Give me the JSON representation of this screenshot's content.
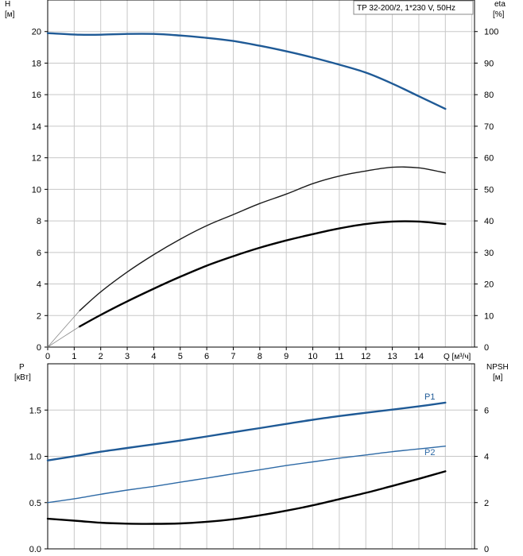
{
  "chart_data": [
    {
      "type": "line",
      "title": "TP 32-200/2, 1*230 V, 50Hz",
      "x_label": "Q [м³/ч]",
      "x_ticks": [
        0,
        1,
        2,
        3,
        4,
        5,
        6,
        7,
        8,
        9,
        10,
        11,
        12,
        13,
        14
      ],
      "xlim": [
        0,
        16.1
      ],
      "y_left": {
        "label": [
          "H",
          "[м]"
        ],
        "ticks": [
          0,
          2,
          4,
          6,
          8,
          10,
          12,
          14,
          16,
          18,
          20
        ],
        "lim": [
          0,
          22
        ]
      },
      "y_right": {
        "label": [
          "eta",
          "[%]"
        ],
        "ticks": [
          0,
          10,
          20,
          30,
          40,
          50,
          60,
          70,
          80,
          90,
          100
        ],
        "lim": [
          0,
          110
        ]
      },
      "series": [
        {
          "key": "H",
          "axis": "left",
          "color": "#1f5a96",
          "style": "thick",
          "points": [
            [
              0,
              19.9
            ],
            [
              1.2,
              19.8
            ],
            [
              2,
              19.8
            ],
            [
              3,
              19.85
            ],
            [
              4,
              19.85
            ],
            [
              5,
              19.75
            ],
            [
              6,
              19.6
            ],
            [
              7,
              19.4
            ],
            [
              8,
              19.1
            ],
            [
              9,
              18.75
            ],
            [
              10,
              18.35
            ],
            [
              11,
              17.9
            ],
            [
              12,
              17.4
            ],
            [
              13,
              16.7
            ],
            [
              14,
              15.9
            ],
            [
              15,
              15.1
            ]
          ]
        },
        {
          "key": "eta_upper",
          "axis": "right",
          "color": "#1a1a1a",
          "style": "thin",
          "points": [
            [
              1.2,
              11.5
            ],
            [
              2,
              17.5
            ],
            [
              3,
              23.8
            ],
            [
              4,
              29.3
            ],
            [
              5,
              34.2
            ],
            [
              6,
              38.5
            ],
            [
              7,
              42.0
            ],
            [
              8,
              45.5
            ],
            [
              9,
              48.5
            ],
            [
              10,
              51.8
            ],
            [
              11,
              54.2
            ],
            [
              12,
              55.8
            ],
            [
              13,
              57.0
            ],
            [
              14,
              56.8
            ],
            [
              15,
              55.2
            ]
          ]
        },
        {
          "key": "eta_upper_ext",
          "axis": "right",
          "color": "#888888",
          "style": "hair",
          "points": [
            [
              0,
              0
            ],
            [
              0.6,
              5.8
            ],
            [
              1.2,
              11.5
            ]
          ]
        },
        {
          "key": "eta_lower",
          "axis": "right",
          "color": "#000000",
          "style": "thick",
          "points": [
            [
              1.2,
              6.5
            ],
            [
              2,
              10.2
            ],
            [
              3,
              14.5
            ],
            [
              4,
              18.5
            ],
            [
              5,
              22.3
            ],
            [
              6,
              25.8
            ],
            [
              7,
              28.8
            ],
            [
              8,
              31.5
            ],
            [
              9,
              33.8
            ],
            [
              10,
              35.8
            ],
            [
              11,
              37.6
            ],
            [
              12,
              39.0
            ],
            [
              13,
              39.8
            ],
            [
              14,
              39.8
            ],
            [
              15,
              39.0
            ]
          ]
        },
        {
          "key": "eta_lower_ext",
          "axis": "right",
          "color": "#888888",
          "style": "hair",
          "points": [
            [
              0,
              0
            ],
            [
              0.6,
              3.3
            ],
            [
              1.2,
              6.5
            ]
          ]
        }
      ]
    },
    {
      "type": "line",
      "x_ticks": [
        0,
        1,
        2,
        3,
        4,
        5,
        6,
        7,
        8,
        9,
        10,
        11,
        12,
        13,
        14
      ],
      "xlim": [
        0,
        16.1
      ],
      "y_left": {
        "label": [
          "P",
          "[кВт]"
        ],
        "ticks": [
          "0.0",
          "0.5",
          "1.0",
          "1.5"
        ],
        "lim": [
          0,
          2.0
        ]
      },
      "y_right": {
        "label": [
          "NPSH",
          "[м]"
        ],
        "ticks": [
          0,
          2,
          4,
          6
        ],
        "lim": [
          0,
          8
        ]
      },
      "series": [
        {
          "key": "P1",
          "name": "P1",
          "axis": "left",
          "color": "#1f5a96",
          "style": "thick",
          "points": [
            [
              0,
              0.955
            ],
            [
              1.2,
              1.01
            ],
            [
              2,
              1.05
            ],
            [
              3,
              1.09
            ],
            [
              4,
              1.13
            ],
            [
              5,
              1.17
            ],
            [
              6,
              1.215
            ],
            [
              7,
              1.26
            ],
            [
              8,
              1.305
            ],
            [
              9,
              1.35
            ],
            [
              10,
              1.395
            ],
            [
              11,
              1.435
            ],
            [
              12,
              1.47
            ],
            [
              13,
              1.505
            ],
            [
              14,
              1.54
            ],
            [
              15,
              1.58
            ]
          ]
        },
        {
          "key": "P2",
          "name": "P2",
          "axis": "left",
          "color": "#2e6aa6",
          "style": "thin",
          "points": [
            [
              0,
              0.5
            ],
            [
              1.2,
              0.55
            ],
            [
              2,
              0.59
            ],
            [
              3,
              0.635
            ],
            [
              4,
              0.675
            ],
            [
              5,
              0.72
            ],
            [
              6,
              0.765
            ],
            [
              7,
              0.81
            ],
            [
              8,
              0.855
            ],
            [
              9,
              0.9
            ],
            [
              10,
              0.94
            ],
            [
              11,
              0.98
            ],
            [
              12,
              1.015
            ],
            [
              13,
              1.05
            ],
            [
              14,
              1.08
            ],
            [
              15,
              1.11
            ]
          ]
        },
        {
          "key": "NPSH",
          "axis": "right",
          "color": "#000000",
          "style": "thick",
          "points": [
            [
              0,
              1.3
            ],
            [
              1.2,
              1.2
            ],
            [
              2,
              1.13
            ],
            [
              3,
              1.09
            ],
            [
              4,
              1.08
            ],
            [
              5,
              1.1
            ],
            [
              6,
              1.17
            ],
            [
              7,
              1.28
            ],
            [
              8,
              1.45
            ],
            [
              9,
              1.65
            ],
            [
              10,
              1.88
            ],
            [
              11,
              2.15
            ],
            [
              12,
              2.42
            ],
            [
              13,
              2.72
            ],
            [
              14,
              3.03
            ],
            [
              15,
              3.35
            ]
          ]
        }
      ]
    }
  ]
}
